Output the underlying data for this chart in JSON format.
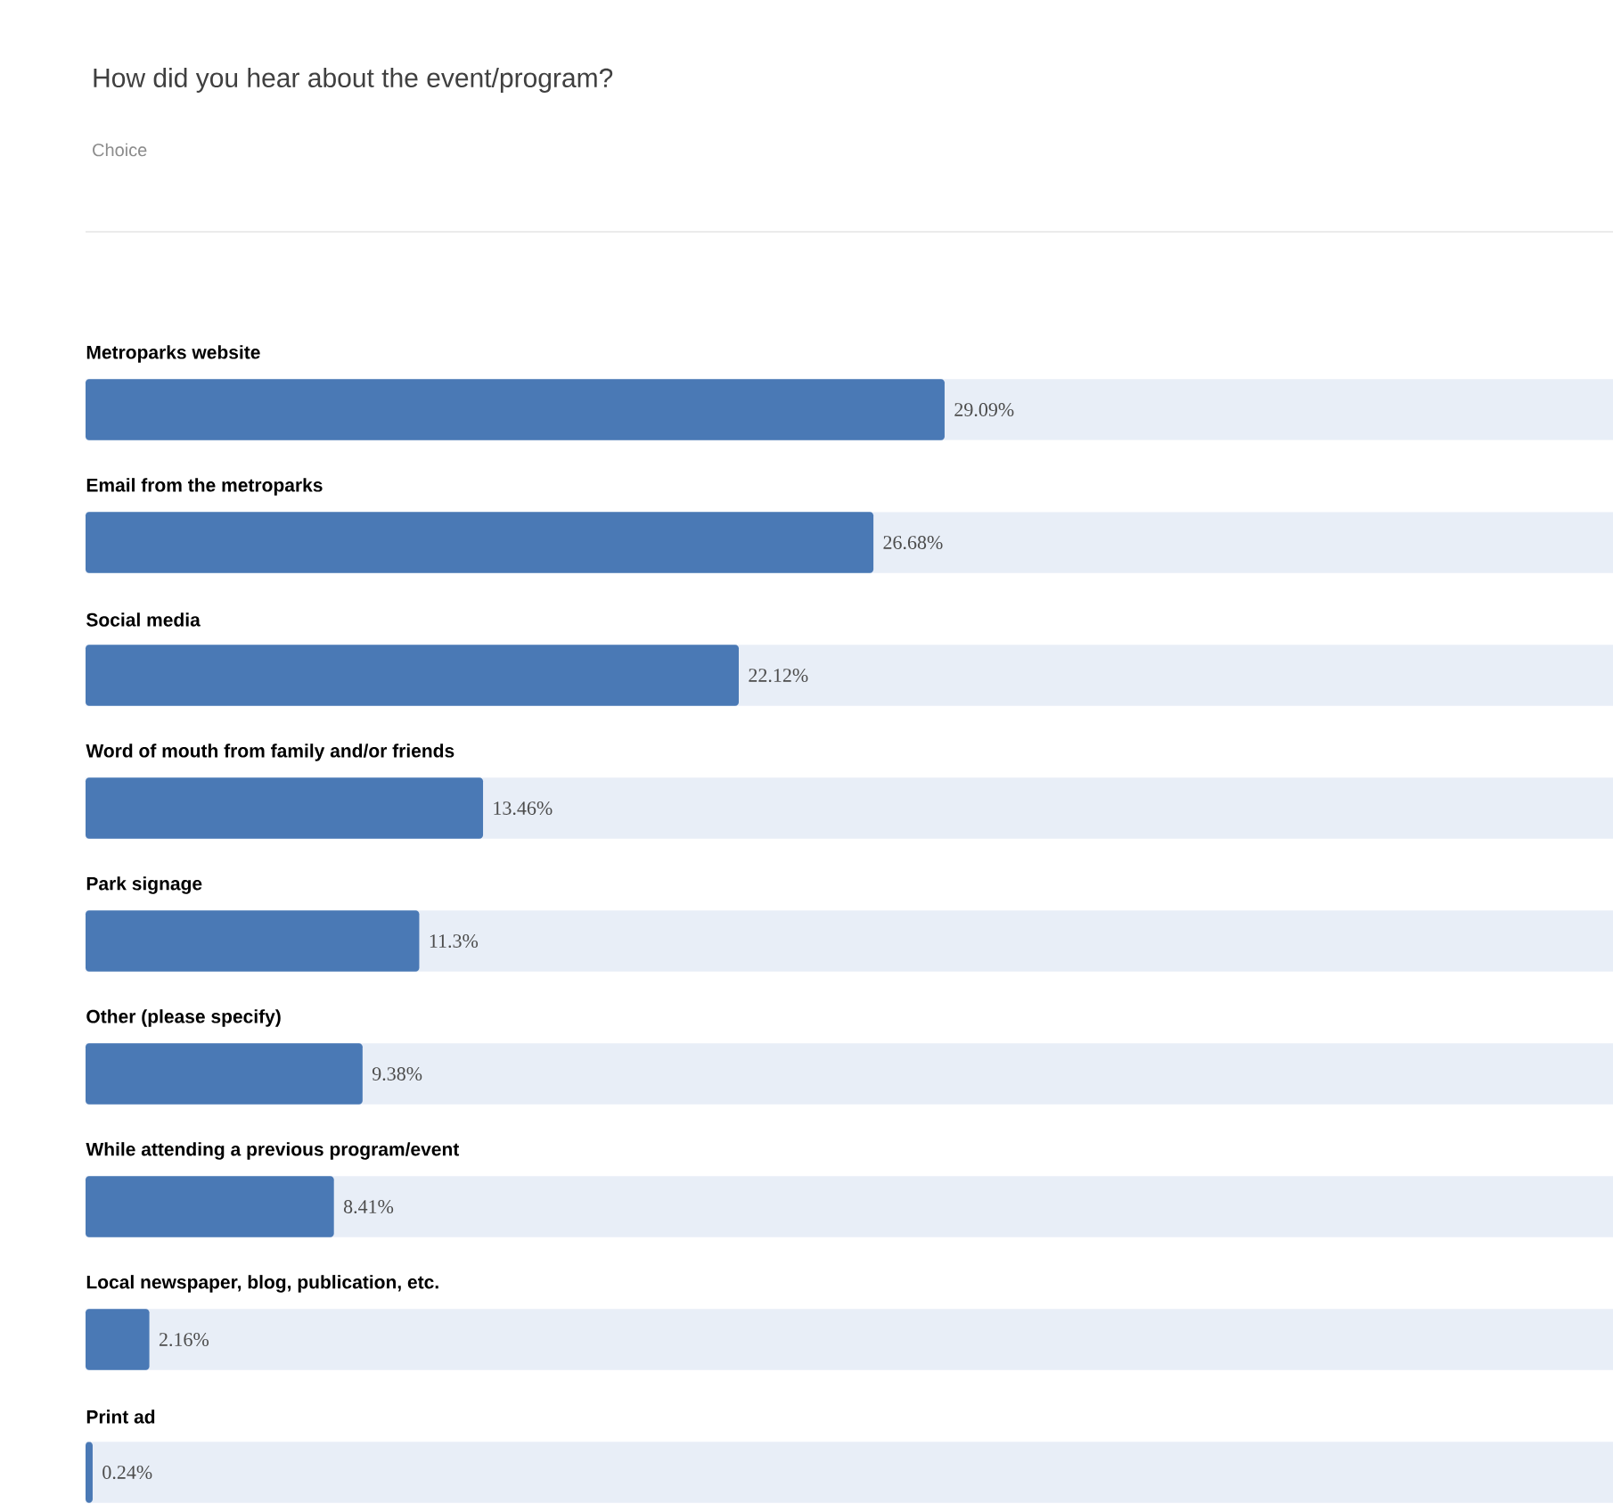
{
  "chart_data": {
    "type": "bar",
    "orientation": "horizontal",
    "title": "How did you hear about the event/program?",
    "subtitle": "Choice",
    "categories": [
      "Metroparks website",
      "Email from the metroparks",
      "Social media",
      "Word of mouth from family and/or friends",
      "Park signage",
      "Other (please specify)",
      "While attending a previous program/event",
      "Local newspaper, blog, publication, etc.",
      "Print ad"
    ],
    "values": [
      29.09,
      26.68,
      22.12,
      13.46,
      11.3,
      9.38,
      8.41,
      2.16,
      0.24
    ],
    "value_labels": [
      "29.09%",
      "26.68%",
      "22.12%",
      "13.46%",
      "11.3%",
      "9.38%",
      "8.41%",
      "2.16%",
      "0.24%"
    ],
    "color": "#4a79b5"
  }
}
